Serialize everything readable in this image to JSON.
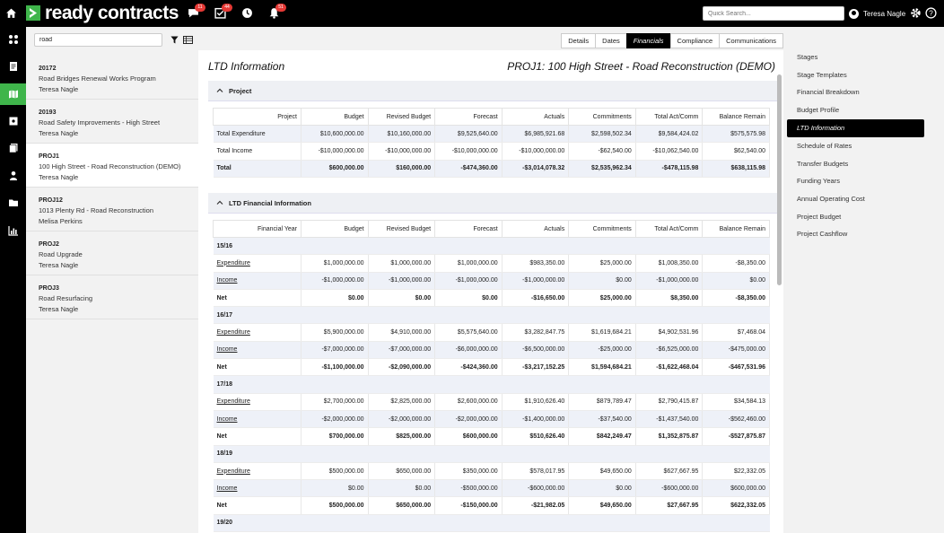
{
  "topbar": {
    "logo_text": "ready contracts",
    "badges": {
      "messages": "11",
      "tasks": "44",
      "notifications": "51"
    },
    "quick_search_placeholder": "Quick Search...",
    "user_name": "Teresa Nagle"
  },
  "list": {
    "search_value": "road",
    "items": [
      {
        "code": "20172",
        "name": "Road Bridges Renewal Works Program",
        "owner": "Teresa Nagle"
      },
      {
        "code": "20193",
        "name": "Road Safety Improvements - High Street",
        "owner": "Teresa Nagle"
      },
      {
        "code": "PROJ1",
        "name": "100 High Street - Road Reconstruction (DEMO)",
        "owner": "Teresa Nagle"
      },
      {
        "code": "PROJ12",
        "name": "1013 Plenty Rd - Road Reconstruction",
        "owner": "Melisa Perkins"
      },
      {
        "code": "PROJ2",
        "name": "Road Upgrade",
        "owner": "Teresa Nagle"
      },
      {
        "code": "PROJ3",
        "name": "Road Resurfacing",
        "owner": "Teresa Nagle"
      }
    ]
  },
  "tabs": [
    "Details",
    "Dates",
    "Financials",
    "Compliance",
    "Communications"
  ],
  "page": {
    "title": "LTD Information",
    "subtitle": "PROJ1: 100 High Street - Road Reconstruction (DEMO)"
  },
  "project_section": {
    "header": "Project",
    "columns": [
      "Project",
      "Budget",
      "Revised Budget",
      "Forecast",
      "Actuals",
      "Commitments",
      "Total Act/Comm",
      "Balance Remain"
    ],
    "rows": [
      [
        "Total Expenditure",
        "$10,600,000.00",
        "$10,160,000.00",
        "$9,525,640.00",
        "$6,985,921.68",
        "$2,598,502.34",
        "$9,584,424.02",
        "$575,575.98"
      ],
      [
        "Total Income",
        "-$10,000,000.00",
        "-$10,000,000.00",
        "-$10,000,000.00",
        "-$10,000,000.00",
        "-$62,540.00",
        "-$10,062,540.00",
        "$62,540.00"
      ],
      [
        "Total",
        "$600,000.00",
        "$160,000.00",
        "-$474,360.00",
        "-$3,014,078.32",
        "$2,535,962.34",
        "-$478,115.98",
        "$638,115.98"
      ]
    ]
  },
  "ltd_section": {
    "header": "LTD Financial Information",
    "columns": [
      "Financial Year",
      "Budget",
      "Revised Budget",
      "Forecast",
      "Actuals",
      "Commitments",
      "Total Act/Comm",
      "Balance Remain"
    ],
    "years": [
      {
        "year": "15/16",
        "rows": [
          [
            "Expenditure",
            "$1,000,000.00",
            "$1,000,000.00",
            "$1,000,000.00",
            "$983,350.00",
            "$25,000.00",
            "$1,008,350.00",
            "-$8,350.00"
          ],
          [
            "Income",
            "-$1,000,000.00",
            "-$1,000,000.00",
            "-$1,000,000.00",
            "-$1,000,000.00",
            "$0.00",
            "-$1,000,000.00",
            "$0.00"
          ],
          [
            "Net",
            "$0.00",
            "$0.00",
            "$0.00",
            "-$16,650.00",
            "$25,000.00",
            "$8,350.00",
            "-$8,350.00"
          ]
        ]
      },
      {
        "year": "16/17",
        "rows": [
          [
            "Expenditure",
            "$5,900,000.00",
            "$4,910,000.00",
            "$5,575,640.00",
            "$3,282,847.75",
            "$1,619,684.21",
            "$4,902,531.96",
            "$7,468.04"
          ],
          [
            "Income",
            "-$7,000,000.00",
            "-$7,000,000.00",
            "-$6,000,000.00",
            "-$6,500,000.00",
            "-$25,000.00",
            "-$6,525,000.00",
            "-$475,000.00"
          ],
          [
            "Net",
            "-$1,100,000.00",
            "-$2,090,000.00",
            "-$424,360.00",
            "-$3,217,152.25",
            "$1,594,684.21",
            "-$1,622,468.04",
            "-$467,531.96"
          ]
        ]
      },
      {
        "year": "17/18",
        "rows": [
          [
            "Expenditure",
            "$2,700,000.00",
            "$2,825,000.00",
            "$2,600,000.00",
            "$1,910,626.40",
            "$879,789.47",
            "$2,790,415.87",
            "$34,584.13"
          ],
          [
            "Income",
            "-$2,000,000.00",
            "-$2,000,000.00",
            "-$2,000,000.00",
            "-$1,400,000.00",
            "-$37,540.00",
            "-$1,437,540.00",
            "-$562,460.00"
          ],
          [
            "Net",
            "$700,000.00",
            "$825,000.00",
            "$600,000.00",
            "$510,626.40",
            "$842,249.47",
            "$1,352,875.87",
            "-$527,875.87"
          ]
        ]
      },
      {
        "year": "18/19",
        "rows": [
          [
            "Expenditure",
            "$500,000.00",
            "$650,000.00",
            "$350,000.00",
            "$578,017.95",
            "$49,650.00",
            "$627,667.95",
            "$22,332.05"
          ],
          [
            "Income",
            "$0.00",
            "$0.00",
            "-$500,000.00",
            "-$600,000.00",
            "$0.00",
            "-$600,000.00",
            "$600,000.00"
          ],
          [
            "Net",
            "$500,000.00",
            "$650,000.00",
            "-$150,000.00",
            "-$21,982.05",
            "$49,650.00",
            "$27,667.95",
            "$622,332.05"
          ]
        ]
      },
      {
        "year": "19/20",
        "rows": []
      }
    ]
  },
  "right_menu": {
    "items": [
      "Stages",
      "Stage Templates",
      "Financial Breakdown",
      "Budget Profile",
      "LTD Information",
      "Schedule of Rates",
      "Transfer Budgets",
      "Funding Years",
      "Annual Operating Cost",
      "Project Budget",
      "Project Cashflow"
    ],
    "active": "LTD Information"
  },
  "colors": {
    "accent": "#3fb54b",
    "topbar": "#000000",
    "badge": "#e53935",
    "row_shade": "#eef1f8"
  }
}
